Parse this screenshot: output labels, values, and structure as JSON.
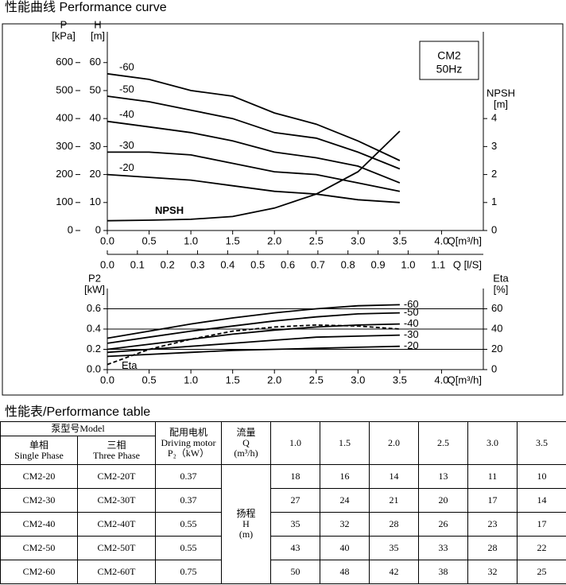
{
  "header": {
    "title": "性能曲线  Performance curve"
  },
  "chart_data": [
    {
      "type": "line",
      "annotation": [
        "CM2",
        "50Hz"
      ],
      "x": [
        0,
        0.5,
        1,
        1.5,
        2,
        2.5,
        3,
        3.5
      ],
      "xlim": [
        0,
        4.5
      ],
      "xticks": [
        {
          "value": 0,
          "label": "0.0"
        },
        0.5,
        {
          "value": 1,
          "label": "1.0"
        },
        1.5,
        {
          "value": 2,
          "label": "2.0"
        },
        2.5,
        {
          "value": 3,
          "label": "3.0"
        },
        3.5,
        {
          "value": 4,
          "label": "4.0"
        }
      ],
      "xlabel": "Q[m³/h]",
      "x2lim": [
        0,
        1.25
      ],
      "x2ticks": [
        {
          "value": 0,
          "label": "0.0"
        },
        0.1,
        0.2,
        0.3,
        0.4,
        0.5,
        0.6,
        0.7,
        0.8,
        0.9,
        {
          "value": 1,
          "label": "1.0"
        },
        1.1
      ],
      "x2label": "Q [l/S]",
      "ylim": [
        0,
        71
      ],
      "yticks": [
        0,
        10,
        20,
        30,
        40,
        50,
        60
      ],
      "ylabel": [
        "H",
        "[m]"
      ],
      "plim": [
        0,
        710
      ],
      "pticks": [
        0,
        100,
        200,
        300,
        400,
        500,
        600
      ],
      "plabel": [
        "P",
        "[kPa]"
      ],
      "y2lim": [
        0,
        7.1
      ],
      "y2ticks": [
        0,
        1,
        2,
        3,
        4
      ],
      "y2label": [
        "NPSH",
        "[m]"
      ],
      "grid": false,
      "series_label_position": "start",
      "series": [
        {
          "name": "-60",
          "color": "#000000",
          "style": "solid",
          "values": [
            56,
            54,
            50,
            48,
            42,
            38,
            32,
            25
          ]
        },
        {
          "name": "-50",
          "color": "#000000",
          "style": "solid",
          "values": [
            48,
            46,
            43,
            40,
            35,
            33,
            28,
            22
          ]
        },
        {
          "name": "-40",
          "color": "#000000",
          "style": "solid",
          "values": [
            39,
            37,
            35,
            32,
            28,
            26,
            23,
            17
          ]
        },
        {
          "name": "-30",
          "color": "#000000",
          "style": "solid",
          "values": [
            28,
            28,
            27,
            24,
            21,
            20,
            17,
            14
          ]
        },
        {
          "name": "-20",
          "color": "#000000",
          "style": "solid",
          "values": [
            20,
            19,
            18,
            16,
            14,
            13,
            11,
            10
          ]
        },
        {
          "name": "NPSH",
          "color": "#000000",
          "style": "solid",
          "axis": "y2",
          "values": [
            0.35,
            0.37,
            0.4,
            0.5,
            0.8,
            1.3,
            2.1,
            3.55
          ]
        }
      ]
    },
    {
      "type": "line",
      "x": [
        0,
        0.5,
        1,
        1.5,
        2,
        2.5,
        3,
        3.5
      ],
      "xlim": [
        0,
        4.5
      ],
      "xticks": [
        {
          "value": 0,
          "label": "0.0"
        },
        0.5,
        {
          "value": 1,
          "label": "1.0"
        },
        1.5,
        {
          "value": 2,
          "label": "2.0"
        },
        2.5,
        {
          "value": 3,
          "label": "3.0"
        },
        3.5,
        {
          "value": 4,
          "label": "4.0"
        }
      ],
      "xlabel": "Q[m³/h]",
      "ylim": [
        0,
        0.8
      ],
      "yticks": [
        {
          "value": 0,
          "label": "0.0"
        },
        0.2,
        0.4,
        0.6
      ],
      "ylabel": [
        "P2",
        "[kW]"
      ],
      "y2lim": [
        0,
        80
      ],
      "y2ticks": [
        0,
        20,
        40,
        60
      ],
      "y2label": [
        "Eta",
        "[%]"
      ],
      "grid": true,
      "series_label_position": "end",
      "series": [
        {
          "name": "-60",
          "color": "#000000",
          "style": "solid",
          "values": [
            0.31,
            0.38,
            0.45,
            0.51,
            0.56,
            0.6,
            0.63,
            0.64
          ]
        },
        {
          "name": "-50",
          "color": "#000000",
          "style": "solid",
          "values": [
            0.26,
            0.32,
            0.38,
            0.43,
            0.48,
            0.52,
            0.55,
            0.56
          ]
        },
        {
          "name": "-40",
          "color": "#000000",
          "style": "solid",
          "values": [
            0.2,
            0.25,
            0.3,
            0.35,
            0.39,
            0.42,
            0.44,
            0.45
          ]
        },
        {
          "name": "-30",
          "color": "#000000",
          "style": "solid",
          "values": [
            0.17,
            0.2,
            0.23,
            0.26,
            0.29,
            0.32,
            0.33,
            0.34
          ]
        },
        {
          "name": "-20",
          "color": "#000000",
          "style": "solid",
          "values": [
            0.13,
            0.15,
            0.17,
            0.19,
            0.2,
            0.21,
            0.22,
            0.23
          ]
        },
        {
          "name": "Eta",
          "color": "#000000",
          "style": "dashed",
          "axis": "y2",
          "values": [
            5,
            20,
            30,
            38,
            42,
            44,
            43,
            40
          ]
        }
      ]
    }
  ],
  "table": {
    "title": "性能表/Performance table",
    "header": {
      "model": "泵型号Model",
      "single_phase": [
        "单相",
        "Single Phase"
      ],
      "three_phase": [
        "三相",
        "Three Phase"
      ],
      "motor": [
        "配用电机",
        "Driving motor",
        "P₂（kW）"
      ],
      "flow": [
        "流量",
        "Q",
        "(m³/h)"
      ],
      "flows": [
        "1.0",
        "1.5",
        "2.0",
        "2.5",
        "3.0",
        "3.5"
      ]
    },
    "head_label": [
      "扬程",
      "H",
      "(m)"
    ],
    "rows": [
      [
        "CM2-20",
        "CM2-20T",
        0.37,
        18,
        16,
        14,
        13,
        11,
        10
      ],
      [
        "CM2-30",
        "CM2-30T",
        0.37,
        27,
        24,
        21,
        20,
        17,
        14
      ],
      [
        "CM2-40",
        "CM2-40T",
        0.55,
        35,
        32,
        28,
        26,
        23,
        17
      ],
      [
        "CM2-50",
        "CM2-50T",
        0.55,
        43,
        40,
        35,
        33,
        28,
        22
      ],
      [
        "CM2-60",
        "CM2-60T",
        0.75,
        50,
        48,
        42,
        38,
        32,
        25
      ]
    ]
  }
}
